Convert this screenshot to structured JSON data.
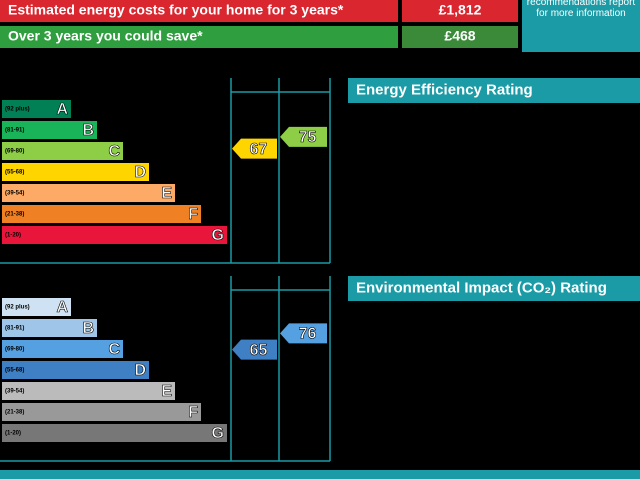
{
  "costs": {
    "rows": [
      {
        "label": "Estimated energy costs for your home for 3 years*",
        "value": "£1,812"
      },
      {
        "label": "Over 3 years you could save*",
        "value": "£468"
      }
    ],
    "note": "See your recommendations report for more information"
  },
  "energy": {
    "title": "Energy Efficiency Rating",
    "bands": [
      {
        "range": "(92 plus)",
        "letter": "A",
        "color": "#008054"
      },
      {
        "range": "(81-91)",
        "letter": "B",
        "color": "#19b459"
      },
      {
        "range": "(69-80)",
        "letter": "C",
        "color": "#8dce46"
      },
      {
        "range": "(55-68)",
        "letter": "D",
        "color": "#ffd500"
      },
      {
        "range": "(39-54)",
        "letter": "E",
        "color": "#fcaa65"
      },
      {
        "range": "(21-38)",
        "letter": "F",
        "color": "#ef8023"
      },
      {
        "range": "(1-20)",
        "letter": "G",
        "color": "#e9153b"
      }
    ],
    "current": 67,
    "current_color": "#ffd500",
    "potential": 75,
    "potential_color": "#8dce46"
  },
  "environment": {
    "title": "Environmental Impact (CO₂) Rating",
    "bands": [
      {
        "range": "(92 plus)",
        "letter": "A",
        "color": "#cfe2f3"
      },
      {
        "range": "(81-91)",
        "letter": "B",
        "color": "#9fc5e8"
      },
      {
        "range": "(69-80)",
        "letter": "C",
        "color": "#55a0e0"
      },
      {
        "range": "(55-68)",
        "letter": "D",
        "color": "#3f7fc4"
      },
      {
        "range": "(39-54)",
        "letter": "E",
        "color": "#bbbbbb"
      },
      {
        "range": "(21-38)",
        "letter": "F",
        "color": "#999999"
      },
      {
        "range": "(1-20)",
        "letter": "G",
        "color": "#777777"
      }
    ],
    "current": 65,
    "current_color": "#3f7fc4",
    "potential": 76,
    "potential_color": "#55a0e0"
  }
}
